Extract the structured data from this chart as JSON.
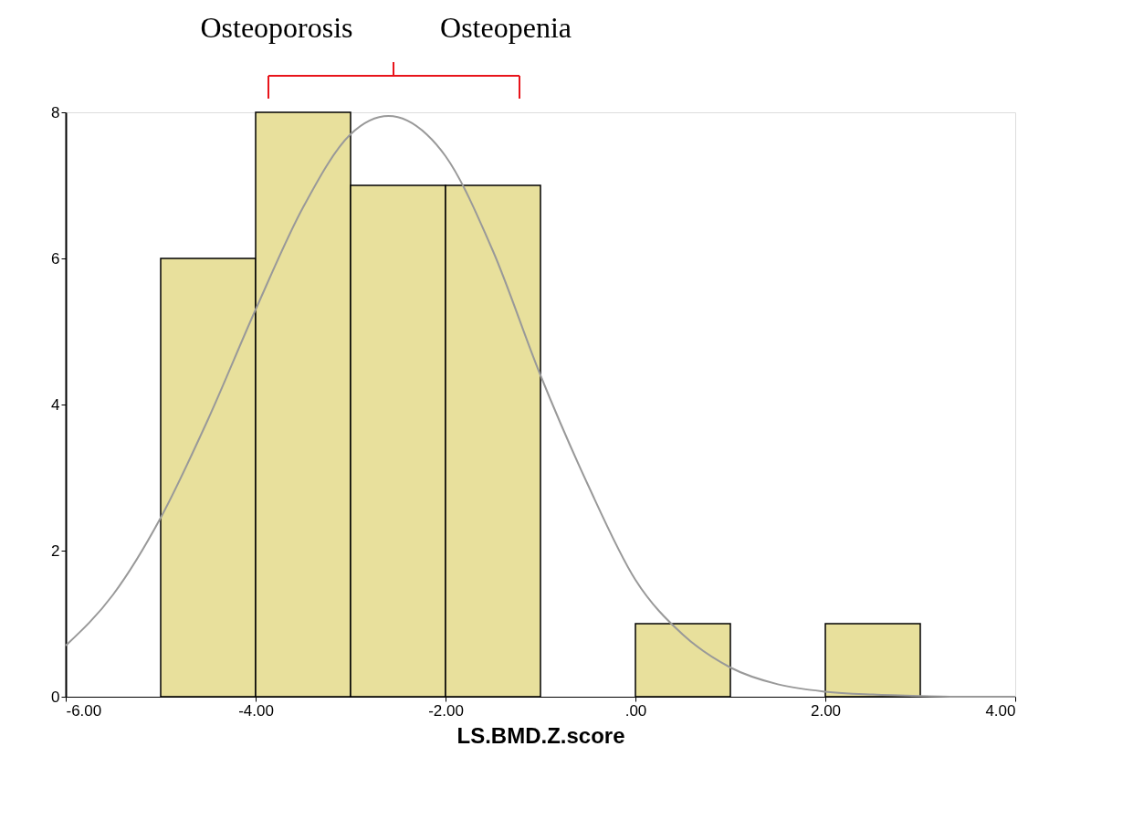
{
  "chart_data": {
    "type": "histogram",
    "xlabel": "LS.BMD.Z.score",
    "bins": [
      -5,
      -4,
      -3,
      -2,
      -1,
      0,
      1,
      2,
      3
    ],
    "values": [
      6,
      8,
      7,
      7,
      0,
      1,
      0,
      1
    ],
    "color": "#e8e09c",
    "series": [
      {
        "type": "line",
        "color": "#999999",
        "x": [
          -6,
          -5.5,
          -5,
          -4.5,
          -4,
          -3.5,
          -3,
          -2.6,
          -2.2,
          -2,
          -1.5,
          -1,
          -0.5,
          0,
          0.5,
          1,
          1.5,
          2,
          2.5,
          3,
          3.5,
          4
        ],
        "values": [
          0.7,
          1.4,
          2.45,
          3.8,
          5.3,
          6.7,
          7.7,
          7.95,
          7.7,
          7.4,
          6.1,
          4.4,
          2.9,
          1.6,
          0.85,
          0.4,
          0.17,
          0.07,
          0.03,
          0.01,
          0.0,
          0.0
        ]
      }
    ],
    "xlim": [
      -6,
      4
    ],
    "xticks": [
      {
        "value": -6,
        "label": "-6.00"
      },
      {
        "value": -4,
        "label": "-4.00"
      },
      {
        "value": -2,
        "label": "-2.00"
      },
      {
        "value": 0,
        "label": ".00"
      },
      {
        "value": 2,
        "label": "2.00"
      },
      {
        "value": 4,
        "label": "4.00"
      }
    ],
    "ylim": [
      0,
      8
    ],
    "yticks": [
      0,
      2,
      4,
      6,
      8
    ],
    "grid": false,
    "annotations": [
      "Osteoporosis",
      "Osteopenia"
    ]
  }
}
